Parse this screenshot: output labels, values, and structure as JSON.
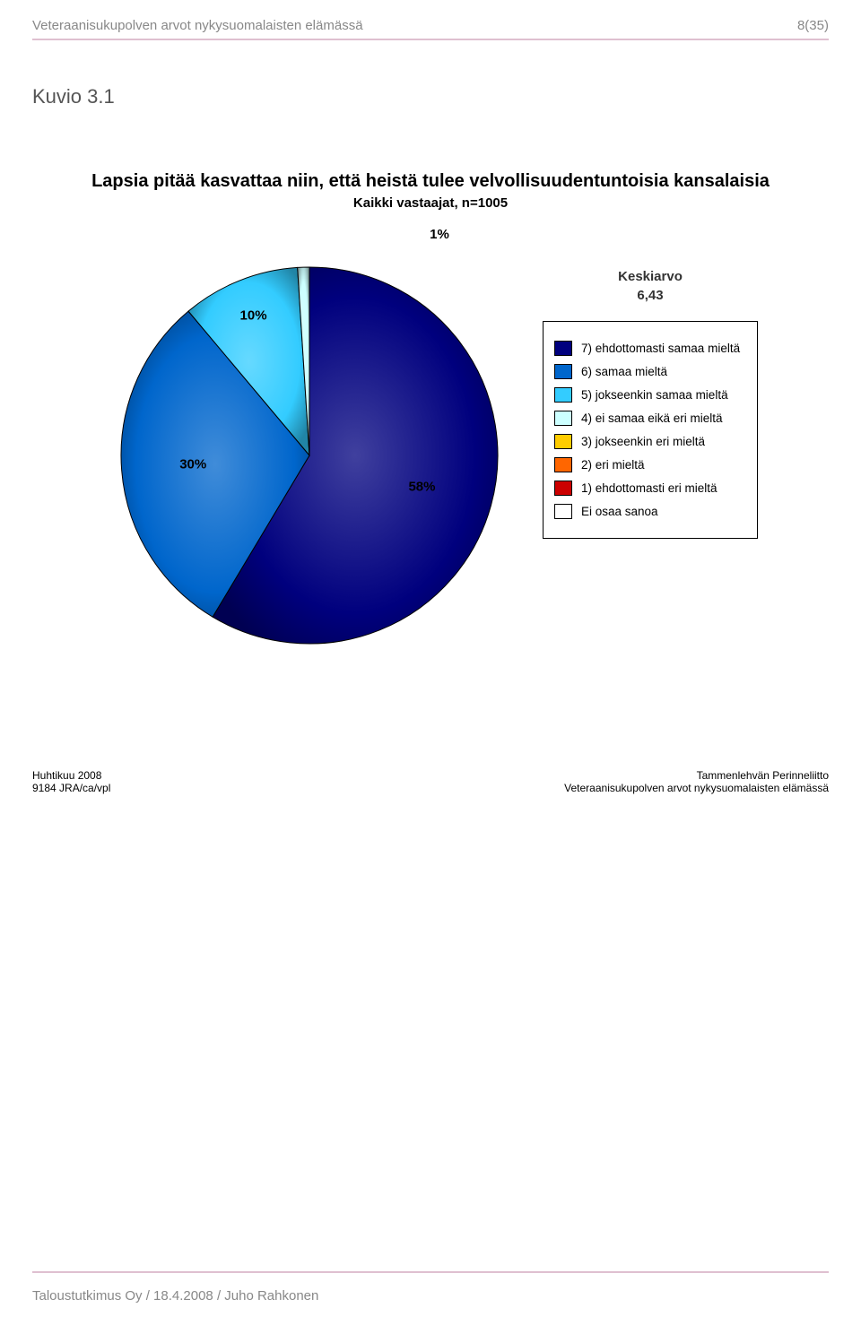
{
  "header": {
    "title": "Veteraanisukupolven arvot nykysuomalaisten elämässä",
    "page_num": "8(35)"
  },
  "kuvio_label": "Kuvio 3.1",
  "chart": {
    "type": "pie",
    "title": "Lapsia pitää kasvattaa niin, että heistä tulee velvollisuudentuntoisia kansalaisia",
    "subtitle": "Kaikki vastaajat, n=1005",
    "background_color": "#ffffff",
    "radius_outer": 210,
    "radius_inner_shade": 0,
    "slices": [
      {
        "value": 58,
        "label": "58%",
        "color": "#00007e",
        "legend_key": "7) ehdottomasti samaa mieltä"
      },
      {
        "value": 30,
        "label": "30%",
        "color": "#0066cc",
        "legend_key": "6) samaa mieltä"
      },
      {
        "value": 10,
        "label": "10%",
        "color": "#33ccff",
        "legend_key": "5) jokseenkin samaa mieltä"
      },
      {
        "value": 1,
        "label": "1%",
        "color": "#ccffff",
        "legend_key": "4) ei samaa eikä eri mieltä",
        "tiny_label_outside": true
      }
    ],
    "start_angle_deg": 90,
    "stroke_color": "#000000",
    "stroke_width": 1,
    "label_fontsize": 15,
    "label_radius_factor": 0.62
  },
  "legend": {
    "header_top": "Keskiarvo",
    "header_value": "6,43",
    "items": [
      {
        "color": "#00007e",
        "label": "7) ehdottomasti samaa mieltä"
      },
      {
        "color": "#0066cc",
        "label": "6) samaa mieltä"
      },
      {
        "color": "#33ccff",
        "label": "5) jokseenkin samaa mieltä"
      },
      {
        "color": "#ccffff",
        "label": "4) ei samaa eikä eri mieltä"
      },
      {
        "color": "#ffcc00",
        "label": "3) jokseenkin eri mieltä"
      },
      {
        "color": "#ff6600",
        "label": "2) eri mieltä"
      },
      {
        "color": "#cc0000",
        "label": "1) ehdottomasti eri mieltä"
      },
      {
        "color": "#ffffff",
        "label": "Ei osaa sanoa"
      }
    ]
  },
  "source": {
    "left_line1": "Huhtikuu 2008",
    "left_line2": "9184 JRA/ca/vpl",
    "right_line1": "Tammenlehvän Perinneliitto",
    "right_line2": "Veteraanisukupolven arvot nykysuomalaisten elämässä"
  },
  "footer": {
    "text": "Taloustutkimus Oy / 18.4.2008 / Juho Rahkonen"
  },
  "colors": {
    "rule": "#dfc0d0",
    "header_text": "#888888",
    "body_text": "#000000"
  }
}
